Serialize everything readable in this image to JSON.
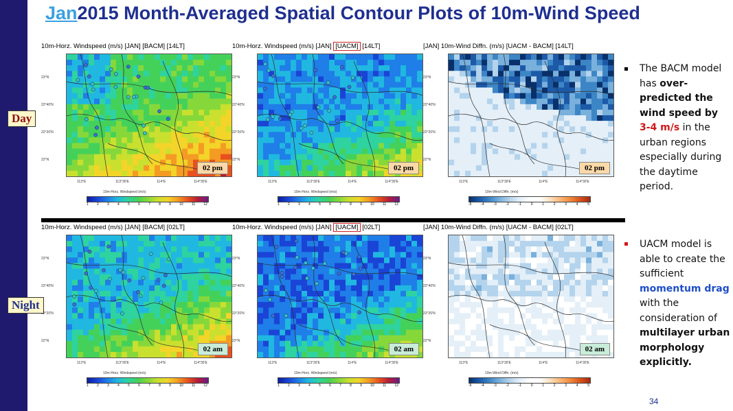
{
  "slide": {
    "title_prefix": "Jan",
    "title_rest": "2015 Month-Averaged Spatial Contour Plots of 10m-Wind Speed",
    "page_number": "34",
    "labels": {
      "day": "Day",
      "night": "Night"
    }
  },
  "panels": [
    {
      "title_left": "10m-Horz. Windspeed (m/s)",
      "title_jan": "[JAN]",
      "title_model": "[BACM]",
      "title_time": "[14LT]",
      "model_highlight": false,
      "time_label": "02 pm",
      "time_color": "#fcd9a8",
      "cbar_title": "10m-Horz. Windspeed (m/s)",
      "cbar_type": "speed",
      "ticks": [
        "1",
        "2",
        "3",
        "4",
        "5",
        "6",
        "7",
        "8",
        "9",
        "10",
        "11",
        "12"
      ],
      "field": "bacm_day"
    },
    {
      "title_left": "10m-Horz. Windspeed (m/s)",
      "title_jan": "[JAN]",
      "title_model": "[UACM]",
      "title_time": "[14LT]",
      "model_highlight": true,
      "time_label": "02 pm",
      "time_color": "#fcd9a8",
      "cbar_title": "10m-Horz. Windspeed (m/s)",
      "cbar_type": "speed",
      "ticks": [
        "1",
        "2",
        "3",
        "4",
        "5",
        "6",
        "7",
        "8",
        "9",
        "10",
        "11",
        "12"
      ],
      "field": "uacm_day"
    },
    {
      "title_left": "[JAN] 10m-Wind Diffn. (m/s)",
      "title_jan": "",
      "title_model": "[UACM - BACM]",
      "title_time": "[14LT]",
      "model_highlight": false,
      "time_label": "02 pm",
      "time_color": "#fcd9a8",
      "cbar_title": "10m-Wind Diffn. (m/s)",
      "cbar_type": "diff",
      "ticks": [
        "-5",
        "-4",
        "-3",
        "-2",
        "-1",
        "0",
        "1",
        "2",
        "3",
        "4",
        "5"
      ],
      "field": "diff_day"
    },
    {
      "title_left": "10m-Horz. Windspeed (m/s)",
      "title_jan": "[JAN]",
      "title_model": "[BACM]",
      "title_time": "[02LT]",
      "model_highlight": false,
      "time_label": "02 am",
      "time_color": "#c8ecd8",
      "cbar_title": "10m-Horz. Windspeed (m/s)",
      "cbar_type": "speed",
      "ticks": [
        "1",
        "2",
        "3",
        "4",
        "5",
        "6",
        "7",
        "8",
        "9",
        "10",
        "11",
        "12"
      ],
      "field": "bacm_night"
    },
    {
      "title_left": "10m-Horz. Windspeed (m/s)",
      "title_jan": "[JAN]",
      "title_model": "[UACM]",
      "title_time": "[02LT]",
      "model_highlight": true,
      "time_label": "02 am",
      "time_color": "#c8ecd8",
      "cbar_title": "10m-Horz. Windspeed (m/s)",
      "cbar_type": "speed",
      "ticks": [
        "1",
        "2",
        "3",
        "4",
        "5",
        "6",
        "7",
        "8",
        "9",
        "10",
        "11",
        "12"
      ],
      "field": "uacm_night"
    },
    {
      "title_left": "[JAN] 10m-Wind Diffn. (m/s)",
      "title_jan": "",
      "title_model": "[UACM - BACM]",
      "title_time": "[02LT]",
      "model_highlight": false,
      "time_label": "02 am",
      "time_color": "#c8ecd8",
      "cbar_title": "10m-Wind Diffn. (m/s)",
      "cbar_type": "diff",
      "ticks": [
        "-5",
        "-4",
        "-3",
        "-2",
        "-1",
        "0",
        "1",
        "2",
        "3",
        "4",
        "5"
      ],
      "field": "diff_night"
    }
  ],
  "map_axes": {
    "lat_labels": [
      "23°N",
      "22°40'N",
      "22°20'N",
      "22°N"
    ],
    "lon_labels": [
      "113°E",
      "113°30'E",
      "114°E",
      "114°30'E"
    ]
  },
  "notes": {
    "note1": {
      "line1": "The BACM model",
      "line2a": "has ",
      "line2b": "over-",
      "line3": "predicted the",
      "line4": "wind speed by",
      "line5a": "3-4 m/s",
      "line5b": " in the",
      "line6": "urban regions",
      "line7": "especially during",
      "line8": "the daytime",
      "line9": "period."
    },
    "note2": {
      "line1": "UACM model is",
      "line2": "able to create the",
      "line3": "sufficient",
      "line4": "momentum drag",
      "line5": "with the",
      "line6": "consideration of",
      "line7": "multilayer urban",
      "line8": "morphology",
      "line9": "explicitly."
    }
  },
  "colors": {
    "title": "#1f2f8f",
    "title_prefix": "#3aa0e0",
    "sidebar": "#1f1a6e",
    "highlight_red": "#d01818",
    "highlight_blue": "#1f4fc9"
  }
}
